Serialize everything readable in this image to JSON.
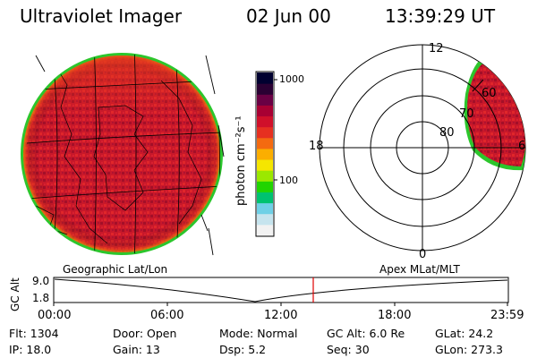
{
  "header": {
    "title": "Ultraviolet Imager",
    "date": "02 Jun 00",
    "time": "13:39:29 UT"
  },
  "globe": {
    "label": "Geographic Lat/Lon"
  },
  "colorbar": {
    "tick_top": "1000",
    "tick_mid": "100",
    "unit": "photon cm⁻²s⁻¹",
    "colors": [
      "#000030",
      "#2a0033",
      "#6a0044",
      "#a80033",
      "#d0102a",
      "#e63020",
      "#f46a10",
      "#fbae00",
      "#f5e600",
      "#9be800",
      "#21d400",
      "#00c270",
      "#6fd0e6",
      "#c6e4ee",
      "#f2f2f2"
    ]
  },
  "polar": {
    "label": "Apex MLat/MLT",
    "mlt_labels": {
      "top": "12",
      "left": "18",
      "bottom": "0",
      "right": "6"
    },
    "lat_labels": [
      "60",
      "70",
      "80"
    ]
  },
  "altitude_plot": {
    "axis_label": "GC Alt",
    "tick_high": "9.0",
    "tick_low": "1.8",
    "hour_ticks": [
      "00:00",
      "06:00",
      "12:00",
      "18:00",
      "23:59"
    ],
    "marker_color": "#e00000"
  },
  "info": {
    "flt": "Flt: 1304",
    "door": "Door: Open",
    "mode": "Mode: Normal",
    "gc_alt": "GC Alt: 6.0 Re",
    "glat": "GLat:  24.2",
    "ip": "IP: 18.0",
    "gain": "Gain: 13",
    "dsp": "Dsp:     5.2",
    "seq": "Seq: 30",
    "glon": "GLon: 273.3"
  }
}
